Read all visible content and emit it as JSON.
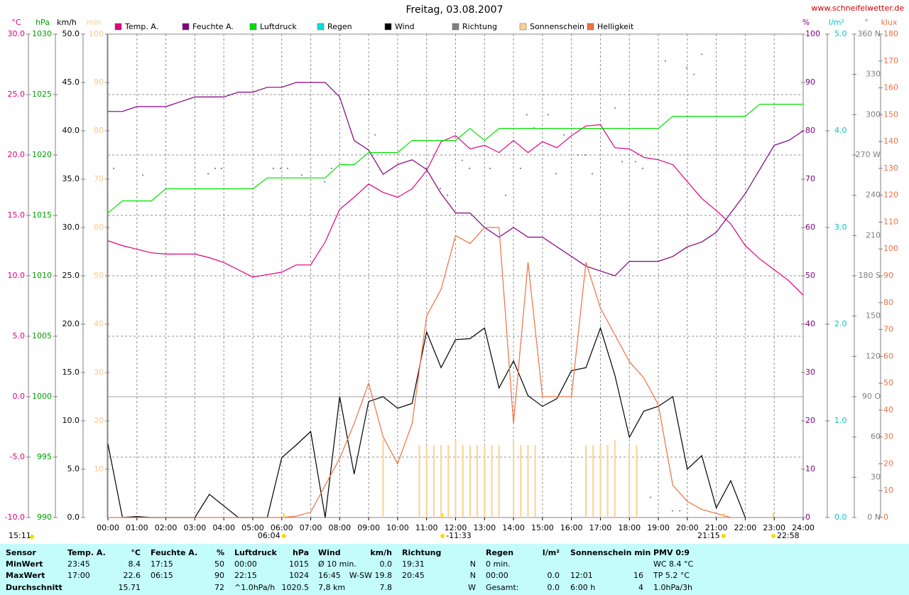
{
  "chart_data": {
    "type": "line",
    "title": "Freitag, 03.08.2007",
    "source": "www.schneifelwetter.de",
    "day_length": "15:11",
    "grid": true,
    "xlim": [
      0,
      24
    ],
    "xticks": [
      {
        "value": 0,
        "label": "00:00"
      },
      {
        "value": 1,
        "label": "01:00"
      },
      {
        "value": 2,
        "label": "02:00"
      },
      {
        "value": 3,
        "label": "03:00"
      },
      {
        "value": 4,
        "label": "04:00"
      },
      {
        "value": 5,
        "label": "05:00"
      },
      {
        "value": 6,
        "label": "06:00"
      },
      {
        "value": 7,
        "label": "07:00"
      },
      {
        "value": 8,
        "label": "08:00"
      },
      {
        "value": 9,
        "label": "09:00"
      },
      {
        "value": 10,
        "label": "10:00"
      },
      {
        "value": 11,
        "label": "11:00"
      },
      {
        "value": 12,
        "label": "12:00"
      },
      {
        "value": 13,
        "label": "13:00"
      },
      {
        "value": 14,
        "label": "14:00"
      },
      {
        "value": 15,
        "label": "15:00"
      },
      {
        "value": 16,
        "label": "16:00"
      },
      {
        "value": 17,
        "label": "17:00"
      },
      {
        "value": 18,
        "label": "18:00"
      },
      {
        "value": 19,
        "label": "19:00"
      },
      {
        "value": 20,
        "label": "20:00"
      },
      {
        "value": 21,
        "label": "21:00"
      },
      {
        "value": 22,
        "label": "22:00"
      },
      {
        "value": 23,
        "label": "23:00"
      },
      {
        "value": 24,
        "label": "24:00"
      }
    ],
    "x": [
      0,
      0.5,
      1,
      1.5,
      2,
      2.5,
      3,
      3.5,
      4,
      4.5,
      5,
      5.5,
      6,
      6.5,
      7,
      7.5,
      8,
      8.5,
      9,
      9.5,
      10,
      10.5,
      11,
      11.5,
      12,
      12.5,
      13,
      13.5,
      14,
      14.5,
      15,
      15.5,
      16,
      16.5,
      17,
      17.5,
      18,
      18.5,
      19,
      19.5,
      20,
      20.5,
      21,
      21.5,
      22,
      22.5,
      23,
      23.5,
      24
    ],
    "axes": [
      {
        "unit": "°C",
        "side": "left",
        "color": "#e0007f",
        "lim": [
          -10,
          30
        ],
        "ticks": [
          {
            "value": -10,
            "label": "-10.0"
          },
          {
            "value": -5,
            "label": "-5.0"
          },
          {
            "value": 0,
            "label": "0.0"
          },
          {
            "value": 5,
            "label": "5.0"
          },
          {
            "value": 10,
            "label": "10.0"
          },
          {
            "value": 15,
            "label": "15.0"
          },
          {
            "value": 20,
            "label": "20.0"
          },
          {
            "value": 25,
            "label": "25.0"
          },
          {
            "value": 30,
            "label": "30.0"
          }
        ]
      },
      {
        "unit": "hPa",
        "side": "left",
        "color": "#00a000",
        "lim": [
          990,
          1030
        ],
        "ticks": [
          990,
          995,
          1000,
          1005,
          1010,
          1015,
          1020,
          1025,
          1030
        ]
      },
      {
        "unit": "km/h",
        "side": "left",
        "color": "#000000",
        "lim": [
          0,
          50
        ],
        "ticks": [
          {
            "value": 0,
            "label": "0.0"
          },
          {
            "value": 5,
            "label": "5.0"
          },
          {
            "value": 10,
            "label": "10.0"
          },
          {
            "value": 15,
            "label": "15.0"
          },
          {
            "value": 20,
            "label": "20.0"
          },
          {
            "value": 25,
            "label": "25.0"
          },
          {
            "value": 30,
            "label": "30.0"
          },
          {
            "value": 35,
            "label": "35.0"
          },
          {
            "value": 40,
            "label": "40.0"
          },
          {
            "value": 45,
            "label": "45.0"
          },
          {
            "value": 50,
            "label": "50.0"
          }
        ]
      },
      {
        "unit": "min",
        "side": "left",
        "color": "#ffc888",
        "lim": [
          0,
          100
        ],
        "ticks": [
          10,
          20,
          30,
          40,
          50,
          60,
          70,
          80,
          90,
          100
        ]
      },
      {
        "unit": "%",
        "side": "right",
        "color": "#800080",
        "lim": [
          0,
          100
        ],
        "ticks": [
          0,
          10,
          20,
          30,
          40,
          50,
          60,
          70,
          80,
          90,
          100
        ]
      },
      {
        "unit": "l/m²",
        "side": "right",
        "color": "#00c8c8",
        "lim": [
          0,
          5
        ],
        "ticks": [
          {
            "value": 0,
            "label": "0.0"
          },
          {
            "value": 1,
            "label": "1.0"
          },
          {
            "value": 2,
            "label": "2.0"
          },
          {
            "value": 3,
            "label": "3.0"
          },
          {
            "value": 4,
            "label": "4.0"
          },
          {
            "value": 5,
            "label": "5.0"
          }
        ]
      },
      {
        "unit": "°",
        "side": "right",
        "color": "#808080",
        "lim": [
          0,
          360
        ],
        "ticks": [
          {
            "value": 0,
            "label": "0 N"
          },
          30,
          60,
          {
            "value": 90,
            "label": "90 O"
          },
          120,
          150,
          {
            "value": 180,
            "label": "180 S"
          },
          210,
          240,
          {
            "value": 270,
            "label": "270 W"
          },
          300,
          330,
          {
            "value": 360,
            "label": "360 N"
          }
        ]
      },
      {
        "unit": "klux",
        "side": "right",
        "color": "#f07040",
        "lim": [
          0,
          180
        ],
        "ticks": [
          0,
          10,
          20,
          30,
          40,
          50,
          60,
          70,
          80,
          90,
          100,
          110,
          120,
          130,
          140,
          150,
          160,
          170,
          180
        ]
      }
    ],
    "series": [
      {
        "name": "Temp. A.",
        "color": "#e0007f",
        "axis": "°C",
        "type": "line",
        "values": [
          12.9,
          12.5,
          12.2,
          11.9,
          11.8,
          11.8,
          11.8,
          11.5,
          11.1,
          10.5,
          9.9,
          10.1,
          10.3,
          10.9,
          10.9,
          12.8,
          15.5,
          16.5,
          17.6,
          16.9,
          16.5,
          17.2,
          18.7,
          21.1,
          21.6,
          20.5,
          20.8,
          20.2,
          21.2,
          20.2,
          21.1,
          20.6,
          21.6,
          22.4,
          22.5,
          20.6,
          20.5,
          19.8,
          19.6,
          19.2,
          17.8,
          16.4,
          15.4,
          14.3,
          12.5,
          11.4,
          10.5,
          9.6,
          8.4
        ]
      },
      {
        "name": "Feuchte A.",
        "color": "#800080",
        "axis": "%",
        "type": "line",
        "values": [
          84,
          84,
          85,
          85,
          85,
          86,
          87,
          87,
          87,
          88,
          88,
          89,
          89,
          90,
          90,
          90,
          87,
          78,
          76,
          71,
          73,
          74,
          72,
          67,
          63,
          63,
          60,
          58,
          60,
          58,
          58,
          56,
          54,
          52,
          51,
          50,
          53,
          53,
          53,
          54,
          56,
          57,
          59,
          63,
          67,
          72,
          77,
          78,
          80
        ]
      },
      {
        "name": "Luftdruck",
        "color": "#00e000",
        "axis": "hPa",
        "type": "line",
        "values": [
          1015.2,
          1016.2,
          1016.2,
          1016.2,
          1017.2,
          1017.2,
          1017.2,
          1017.2,
          1017.2,
          1017.2,
          1017.2,
          1018.1,
          1018.1,
          1018.1,
          1018.1,
          1018.1,
          1019.2,
          1019.2,
          1020.2,
          1020.2,
          1020.2,
          1021.2,
          1021.2,
          1021.2,
          1021.2,
          1022.2,
          1021.2,
          1022.2,
          1022.2,
          1022.2,
          1022.2,
          1022.2,
          1022.2,
          1022.2,
          1022.2,
          1022.2,
          1022.2,
          1022.2,
          1022.2,
          1023.2,
          1023.2,
          1023.2,
          1023.2,
          1023.2,
          1023.2,
          1024.2,
          1024.2,
          1024.2,
          1024.2
        ]
      },
      {
        "name": "Regen",
        "color": "#00e0e0",
        "axis": "l/m²",
        "type": "line"
      },
      {
        "name": "Wind",
        "color": "#000000",
        "axis": "km/h",
        "type": "line",
        "values": [
          7.6,
          0,
          0.1,
          0,
          0,
          0,
          0,
          2.4,
          1.2,
          0,
          0,
          0,
          6.2,
          7.5,
          8.9,
          0,
          12.5,
          4.5,
          12,
          12.5,
          11.3,
          11.8,
          19.2,
          15.5,
          18.4,
          18.5,
          19.6,
          13.4,
          16.2,
          12.6,
          11.5,
          12.3,
          15.2,
          15.5,
          19.6,
          14.7,
          8.3,
          11,
          11.5,
          12.5,
          5,
          6.4,
          1,
          3.8,
          0,
          null,
          null,
          null,
          null
        ]
      },
      {
        "name": "Richtung",
        "color": "#808080",
        "axis": "°",
        "type": "scatter",
        "x": [
          0.2,
          1.2,
          3.46,
          3.7,
          3.92,
          5.71,
          5.96,
          6.2,
          6.69,
          7.48,
          7.72,
          9.22,
          10.98,
          11.47,
          11.72,
          12.23,
          12.48,
          13.19,
          13.73,
          14.24,
          14.46,
          14.71,
          15.2,
          15.47,
          15.74,
          16.23,
          16.47,
          16.72,
          17.5,
          17.75,
          18.21,
          18.46,
          18.73,
          19.24,
          19.49,
          19.74,
          19.98,
          20.23,
          20.5
        ],
        "values": [
          260,
          255,
          256,
          260,
          260,
          260,
          260,
          260,
          255,
          250,
          260,
          285,
          260,
          245,
          240,
          266,
          260,
          260,
          240,
          260,
          300,
          290,
          300,
          256,
          285,
          270,
          270,
          256,
          305,
          265,
          265,
          260,
          15,
          340,
          5,
          5,
          335,
          330,
          345
        ]
      },
      {
        "name": "Sonnenschein",
        "color": "#ffd090",
        "axis": "min",
        "type": "bar",
        "x": [
          9.5,
          10.75,
          11,
          11.25,
          11.5,
          11.75,
          12,
          12.25,
          12.5,
          12.75,
          13,
          13.25,
          13.5,
          14,
          14.25,
          14.5,
          14.75,
          16.5,
          16.75,
          17,
          17.25,
          17.5,
          18,
          18.25
        ],
        "values": [
          16,
          15,
          15,
          15,
          15,
          15,
          16,
          15,
          15,
          15,
          15,
          15,
          15,
          16,
          15,
          15,
          15,
          15,
          15,
          15,
          15,
          16,
          15,
          15
        ]
      },
      {
        "name": "Helligkeit",
        "color": "#f07040",
        "axis": "klux",
        "type": "line",
        "values": [
          0,
          0,
          0,
          0,
          0,
          0,
          0,
          0,
          0,
          0,
          0,
          0,
          0,
          0.5,
          2,
          12,
          22,
          35,
          50,
          30,
          20,
          35,
          75,
          85,
          105,
          102,
          108,
          108,
          35,
          95,
          45,
          45,
          45,
          95,
          78,
          68,
          58,
          52,
          42,
          12,
          6,
          3,
          1.5,
          0,
          null,
          null,
          null,
          null,
          null
        ]
      }
    ],
    "annotations": [
      {
        "x": 6.07,
        "text": "06:04",
        "align": "end"
      },
      {
        "x": 11.55,
        "text": "-11:33",
        "align": "start"
      },
      {
        "x": 21.25,
        "text": "21:15",
        "align": "end"
      },
      {
        "x": 22.97,
        "text": "22:58",
        "align": "start"
      }
    ]
  },
  "table": {
    "header": [
      {
        "l": "Sensor"
      },
      {
        "l": "Temp. A.",
        "r": "°C"
      },
      {
        "l": "Feuchte A.",
        "r": "%"
      },
      {
        "l": "Luftdruck",
        "r": "hPa"
      },
      {
        "l": "Wind",
        "r": "km/h"
      },
      {
        "l": "Richtung"
      },
      {
        "l": "Regen",
        "r": "l/m²"
      },
      {
        "l": "Sonnenschein min"
      },
      {
        "l": "PMV 0:9"
      }
    ],
    "rows": [
      [
        {
          "l": "MinWert"
        },
        {
          "l": "23:45",
          "r": "8.4"
        },
        {
          "l": "17:15",
          "r": "50"
        },
        {
          "l": "00:00",
          "r": "1015"
        },
        {
          "l": "Ø 10 min.",
          "r": "0.0"
        },
        {
          "l": "19:31",
          "r": "N"
        },
        {
          "l": "0 min."
        },
        {},
        {
          "l": "WC 8.4 °C"
        }
      ],
      [
        {
          "l": "MaxWert"
        },
        {
          "l": "17:00",
          "r": "22.6"
        },
        {
          "l": "06:15",
          "r": "90"
        },
        {
          "l": "22:15",
          "r": "1024"
        },
        {
          "l": "16:45",
          "r": "W-SW 19.8"
        },
        {
          "l": "20:45",
          "r": "N"
        },
        {
          "l": "00:00",
          "r": "0.0"
        },
        {
          "l": "12:01",
          "r": "16"
        },
        {
          "l": "TP 5.2 °C"
        }
      ],
      [
        {
          "l": "Durchschnitt"
        },
        {
          "r": "15.71"
        },
        {
          "r": "72"
        },
        {
          "l": "^1.0hPa/h",
          "r": "1020.5"
        },
        {
          "l": "7,8 km",
          "r": "7.8"
        },
        {
          "r": "W"
        },
        {
          "l": "Gesamt:",
          "r": "0.0"
        },
        {
          "l": "6:00 h",
          "r": "4"
        },
        {
          "l": "1.0hPa/3h"
        }
      ]
    ]
  }
}
